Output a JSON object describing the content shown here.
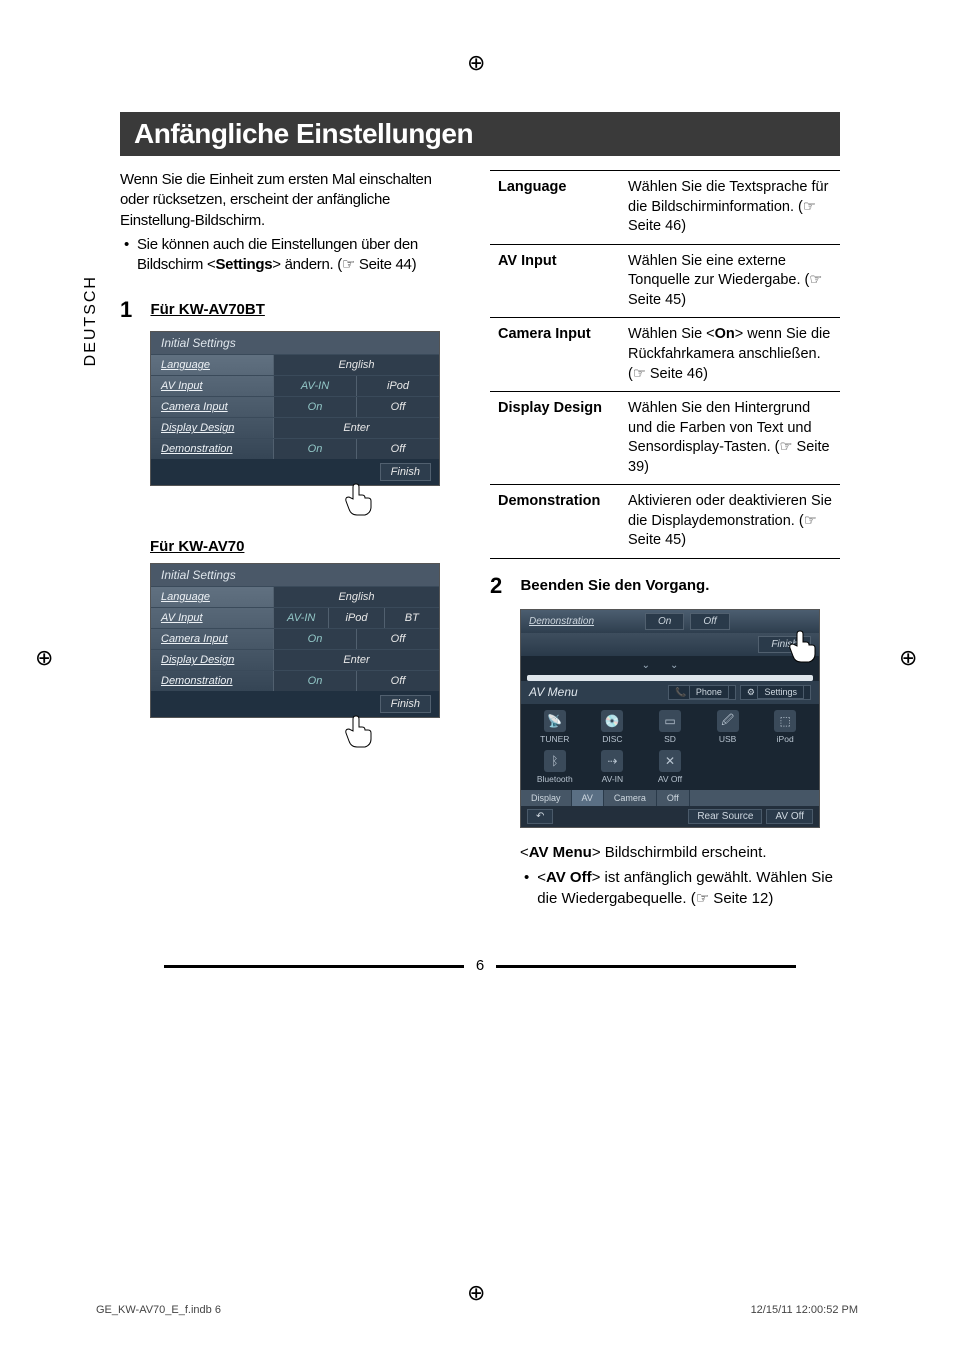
{
  "page_title": "Anfängliche Einstellungen",
  "side_tab": "DEUTSCH",
  "intro": {
    "p1": "Wenn Sie die Einheit zum ersten Mal einschalten oder rücksetzen, erscheint der anfängliche Einstellung-Bildschirm.",
    "li1_a": "Sie können auch die Einstellungen über den Bildschirm <",
    "li1_bold": "Settings",
    "li1_b": "> ändern. (☞ Seite 44)"
  },
  "step1": {
    "num": "1",
    "label_a": "Für KW-AV70BT",
    "label_b": "Für KW-AV70"
  },
  "screenshot_a": {
    "title": "Initial Settings",
    "rows": [
      {
        "label": "Language",
        "cells": [
          {
            "t": "English",
            "span": 2
          }
        ]
      },
      {
        "label": "AV Input",
        "cells": [
          {
            "t": "AV-IN",
            "sel": true
          },
          {
            "t": "iPod"
          }
        ]
      },
      {
        "label": "Camera Input",
        "cells": [
          {
            "t": "On",
            "sel": true
          },
          {
            "t": "Off"
          }
        ]
      },
      {
        "label": "Display Design",
        "cells": [
          {
            "t": "Enter",
            "span": 2
          }
        ]
      },
      {
        "label": "Demonstration",
        "cells": [
          {
            "t": "On",
            "sel": true
          },
          {
            "t": "Off"
          }
        ]
      }
    ],
    "finish": "Finish"
  },
  "screenshot_b": {
    "title": "Initial Settings",
    "rows": [
      {
        "label": "Language",
        "cells": [
          {
            "t": "English",
            "span": 3
          }
        ]
      },
      {
        "label": "AV Input",
        "cells": [
          {
            "t": "AV-IN",
            "sel": true
          },
          {
            "t": "iPod"
          },
          {
            "t": "BT"
          }
        ]
      },
      {
        "label": "Camera Input",
        "cells": [
          {
            "t": "On",
            "sel": true
          },
          {
            "t": "Off"
          }
        ]
      },
      {
        "label": "Display Design",
        "cells": [
          {
            "t": "Enter",
            "span": 3
          }
        ]
      },
      {
        "label": "Demonstration",
        "cells": [
          {
            "t": "On",
            "sel": true
          },
          {
            "t": "Off"
          }
        ]
      }
    ],
    "finish": "Finish"
  },
  "settings_table": [
    {
      "k": "Language",
      "v": "Wählen Sie die Textsprache für die Bildschirminformation. (☞ Seite 46)"
    },
    {
      "k": "AV Input",
      "v": "Wählen Sie eine externe Tonquelle zur Wiedergabe. (☞ Seite 45)"
    },
    {
      "k": "Camera Input",
      "v_html": true,
      "v_a": "Wählen Sie <",
      "v_bold": "On",
      "v_b": "> wenn Sie die Rückfahrkamera anschließen. (☞ Seite 46)"
    },
    {
      "k": "Display Design",
      "v": "Wählen Sie den Hintergrund und die Farben von Text und Sensordisplay-Tasten. (☞ Seite 39)"
    },
    {
      "k": "Demonstration",
      "v": "Aktivieren oder deaktivieren Sie die Displaydemonstration. (☞ Seite 45)"
    }
  ],
  "step2": {
    "num": "2",
    "label": "Beenden Sie den Vorgang."
  },
  "avmenu": {
    "top_label": "Demonstration",
    "on": "On",
    "off": "Off",
    "finish": "Finish",
    "title": "AV Menu",
    "phone": "Phone",
    "settings": "Settings",
    "items_row1": [
      "TUNER",
      "DISC",
      "SD",
      "USB",
      "iPod"
    ],
    "items_row2": [
      "Bluetooth",
      "AV-IN",
      "AV Off"
    ],
    "tabs": [
      "Display",
      "AV",
      "Camera",
      "Off"
    ],
    "rear": "Rear Source",
    "avoff": "AV Off"
  },
  "step2_body": {
    "p_a": "<",
    "p_bold": "AV Menu",
    "p_b": "> Bildschirmbild erscheint.",
    "li_a": "<",
    "li_bold": "AV Off",
    "li_b": "> ist anfänglich gewählt. Wählen Sie die Wiedergabequelle. (☞ Seite 12)"
  },
  "page_number": "6",
  "footer": {
    "left": "GE_KW-AV70_E_f.indb   6",
    "right": "12/15/11   12:00:52 PM"
  }
}
